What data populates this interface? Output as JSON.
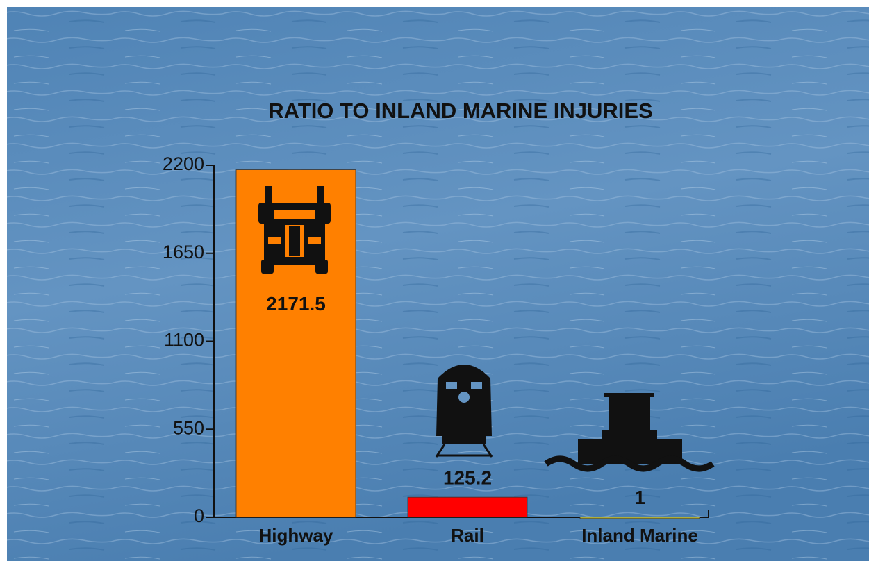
{
  "chart_data": {
    "type": "bar",
    "title": "RATIO TO INLAND MARINE INJURIES",
    "categories": [
      "Highway",
      "Rail",
      "Inland Marine"
    ],
    "values": [
      2171.5,
      125.2,
      1
    ],
    "colors": [
      "#ff8000",
      "#ff0000",
      "#c8c83c"
    ],
    "ylim": [
      0,
      2200
    ],
    "yticks": [
      0,
      550,
      1100,
      1650,
      2200
    ]
  }
}
